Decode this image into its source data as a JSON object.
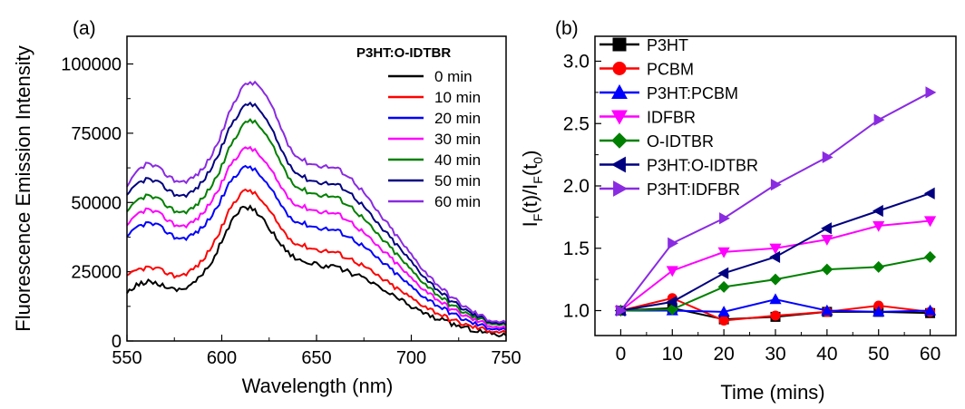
{
  "chart_data": [
    {
      "type": "line",
      "panel_label": "(a)",
      "xlabel": "Wavelength (nm)",
      "ylabel": "Fluorescence Emission Intensity",
      "xlim": [
        550,
        750
      ],
      "ylim": [
        0,
        110000
      ],
      "xticks": [
        "550",
        "600",
        "650",
        "700",
        "750"
      ],
      "yticks": [
        "0",
        "25000",
        "50000",
        "75000",
        "100000"
      ],
      "legend_title": "P3HT:O-IDTBR",
      "legend_position": "top-right",
      "grid": false,
      "x": [
        550,
        555,
        560,
        565,
        570,
        575,
        580,
        585,
        590,
        595,
        600,
        605,
        610,
        615,
        620,
        625,
        630,
        635,
        640,
        645,
        650,
        655,
        660,
        665,
        670,
        675,
        680,
        690,
        700,
        710,
        720,
        730,
        740,
        750
      ],
      "series": [
        {
          "name": "0 min",
          "color": "#000000",
          "values": [
            17000,
            20000,
            21500,
            21000,
            20000,
            18500,
            19000,
            21000,
            24000,
            29000,
            36000,
            43000,
            47500,
            48500,
            45500,
            41000,
            36000,
            32000,
            29500,
            28500,
            27500,
            27000,
            26500,
            25500,
            24000,
            22500,
            20500,
            16500,
            12500,
            9000,
            6500,
            4500,
            3000,
            2000
          ]
        },
        {
          "name": "10 min",
          "color": "#ff0000",
          "values": [
            23000,
            25500,
            26500,
            26000,
            25000,
            23500,
            24000,
            26000,
            29000,
            34500,
            41000,
            48500,
            53500,
            54500,
            51500,
            47000,
            42000,
            37500,
            35000,
            34000,
            33000,
            32500,
            32000,
            30500,
            29000,
            27000,
            24500,
            20000,
            15500,
            11500,
            8000,
            5500,
            4000,
            3000
          ]
        },
        {
          "name": "20 min",
          "color": "#0000ff",
          "values": [
            37000,
            41000,
            42500,
            42000,
            40000,
            37500,
            37000,
            38500,
            41000,
            45500,
            51500,
            58000,
            62000,
            63000,
            60000,
            55500,
            50500,
            45500,
            43000,
            42000,
            41000,
            40500,
            40000,
            38500,
            36500,
            34000,
            31000,
            25500,
            19500,
            14500,
            10500,
            7000,
            5000,
            4000
          ]
        },
        {
          "name": "30 min",
          "color": "#ff00ff",
          "values": [
            41000,
            45500,
            47500,
            46500,
            44500,
            42000,
            41500,
            43000,
            46000,
            51000,
            57000,
            64000,
            68500,
            70000,
            67000,
            62500,
            57000,
            52000,
            49000,
            48000,
            47000,
            46500,
            46000,
            44500,
            42000,
            39000,
            35500,
            29500,
            22500,
            17000,
            12000,
            8500,
            6000,
            4500
          ]
        },
        {
          "name": "40 min",
          "color": "#008000",
          "values": [
            46000,
            50500,
            52500,
            51500,
            49500,
            47000,
            46500,
            48000,
            51500,
            56500,
            63000,
            71000,
            77000,
            80000,
            77500,
            72500,
            66000,
            59500,
            55500,
            54000,
            53000,
            52500,
            52000,
            50000,
            47500,
            44000,
            40000,
            33000,
            25500,
            19000,
            13500,
            9500,
            7000,
            5500
          ]
        },
        {
          "name": "50 min",
          "color": "#000080",
          "values": [
            52000,
            56500,
            58500,
            57500,
            55500,
            53000,
            52500,
            54000,
            57500,
            63000,
            70000,
            78000,
            83500,
            86000,
            83500,
            78000,
            71000,
            64500,
            60500,
            58500,
            57500,
            57000,
            56500,
            55000,
            52000,
            48500,
            44000,
            36500,
            28500,
            21000,
            15000,
            10500,
            7500,
            6000
          ]
        },
        {
          "name": "60 min",
          "color": "#8a2be2",
          "values": [
            55000,
            61000,
            64000,
            63000,
            60500,
            58000,
            57500,
            59000,
            62000,
            67500,
            75000,
            84000,
            91000,
            93500,
            92000,
            86500,
            79000,
            71000,
            66500,
            64500,
            63500,
            63000,
            62500,
            60500,
            57500,
            53500,
            48500,
            40000,
            31000,
            23000,
            16500,
            11500,
            8000,
            6500
          ]
        }
      ]
    },
    {
      "type": "line",
      "panel_label": "(b)",
      "xlabel": "Time (mins)",
      "ylabel": "I_F(t)/I_F(t_0)",
      "ylabel_parts": {
        "i1": "I",
        "s1": "F",
        "m1": "(t)/I",
        "s2": "F",
        "m2": "(t",
        "s3": "0",
        "m3": ")"
      },
      "xlim": [
        -5,
        65
      ],
      "ylim": [
        0.8,
        3.2
      ],
      "xticks": [
        "0",
        "10",
        "20",
        "30",
        "40",
        "50",
        "60"
      ],
      "yticks": [
        "1.0",
        "1.5",
        "2.0",
        "2.5",
        "3.0"
      ],
      "legend_position": "top-left",
      "grid": false,
      "x": [
        0,
        10,
        20,
        30,
        40,
        50,
        60
      ],
      "series": [
        {
          "name": "P3HT",
          "color": "#000000",
          "marker": "square",
          "values": [
            1.0,
            1.02,
            0.93,
            0.95,
            0.99,
            0.99,
            0.98
          ]
        },
        {
          "name": "PCBM",
          "color": "#ff0000",
          "marker": "circle",
          "values": [
            1.0,
            1.1,
            0.92,
            0.96,
            0.99,
            1.04,
            0.99
          ]
        },
        {
          "name": "P3HT:PCBM",
          "color": "#0000ff",
          "marker": "triangle-up",
          "values": [
            1.0,
            1.0,
            0.99,
            1.09,
            1.0,
            0.99,
            1.0
          ]
        },
        {
          "name": "IDFBR",
          "color": "#ff00ff",
          "marker": "triangle-down",
          "values": [
            1.0,
            1.32,
            1.47,
            1.5,
            1.57,
            1.68,
            1.72
          ]
        },
        {
          "name": "O-IDTBR",
          "color": "#008000",
          "marker": "diamond",
          "values": [
            1.0,
            1.01,
            1.19,
            1.25,
            1.33,
            1.35,
            1.43
          ]
        },
        {
          "name": "P3HT:O-IDTBR",
          "color": "#000080",
          "marker": "triangle-left",
          "values": [
            1.0,
            1.07,
            1.3,
            1.43,
            1.66,
            1.8,
            1.94
          ]
        },
        {
          "name": "P3HT:IDFBR",
          "color": "#8a2be2",
          "marker": "triangle-right",
          "values": [
            1.0,
            1.54,
            1.74,
            2.01,
            2.23,
            2.53,
            2.75
          ]
        }
      ]
    }
  ]
}
